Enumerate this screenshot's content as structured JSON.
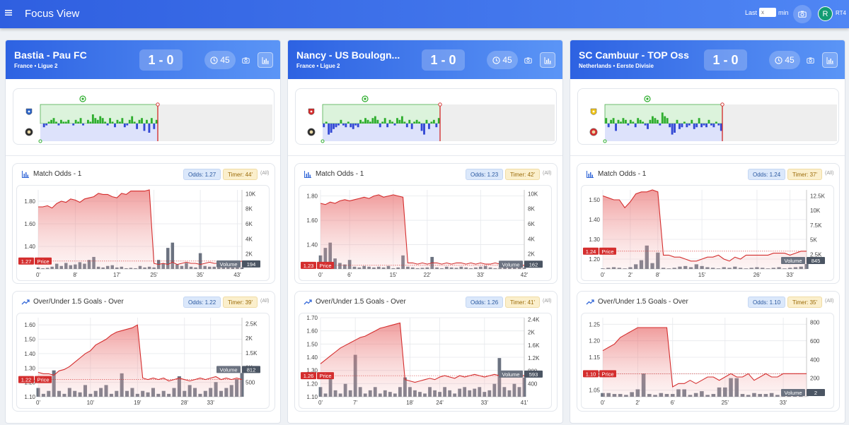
{
  "header": {
    "menu_icon": "hamburger-icon",
    "title": "Focus View",
    "last_label": "Last",
    "last_placeholder": "x",
    "min_label": "min",
    "snapshot_icon": "camera-icon",
    "avatar_initial": "R",
    "user_tag": "RT4"
  },
  "panels": [
    {
      "title": "Bastia - Pau FC",
      "league": "France • Ligue 2",
      "score": "1 - 0",
      "minute": "45",
      "colors": {
        "home_badge": "#2b63c6",
        "away_badge": "#2a2a2a"
      },
      "match_odds": {
        "title": "Match Odds - 1",
        "odds_badge": "Odds: 1.27",
        "timer_badge": "Timer: 44'",
        "all_label": "(All)",
        "price_label": "1.27",
        "price_tag": "Price",
        "volume_tag": "Volume",
        "volume_value": "194"
      },
      "over_under": {
        "title": "Over/Under 1.5 Goals - Over",
        "odds_badge": "Odds: 1.22",
        "timer_badge": "Timer: 39'",
        "all_label": "(All)",
        "price_label": "1.22",
        "price_tag": "Price",
        "volume_tag": "Volume",
        "volume_value": "812"
      }
    },
    {
      "title": "Nancy - US Boulogn...",
      "league": "France • Ligue 2",
      "score": "1 - 0",
      "minute": "45",
      "colors": {
        "home_badge": "#d62b2b",
        "away_badge": "#2a2a2a"
      },
      "match_odds": {
        "title": "Match Odds - 1",
        "odds_badge": "Odds: 1.23",
        "timer_badge": "Timer: 42'",
        "all_label": "(All)",
        "price_label": "1.23",
        "price_tag": "Price",
        "volume_tag": "Volume",
        "volume_value": "162"
      },
      "over_under": {
        "title": "Over/Under 1.5 Goals - Over",
        "odds_badge": "Odds: 1.26",
        "timer_badge": "Timer: 41'",
        "all_label": "(All)",
        "price_label": "1.26",
        "price_tag": "Price",
        "volume_tag": "Volume",
        "volume_value": "593"
      }
    },
    {
      "title": "SC Cambuur - TOP Oss",
      "league": "Netherlands • Eerste Divisie",
      "score": "1 - 0",
      "minute": "45",
      "colors": {
        "home_badge": "#f0c419",
        "away_badge": "#d62b2b"
      },
      "match_odds": {
        "title": "Match Odds - 1",
        "odds_badge": "Odds: 1.24",
        "timer_badge": "Timer: 37'",
        "all_label": "(All)",
        "price_label": "1.24",
        "price_tag": "Price",
        "volume_tag": "Volume",
        "volume_value": "845"
      },
      "over_under": {
        "title": "Over/Under 1.5 Goals - Over",
        "odds_badge": "Odds: 1.10",
        "timer_badge": "Timer: 35'",
        "all_label": "(All)",
        "price_label": "1.10",
        "price_tag": "Price",
        "volume_tag": "Volume",
        "volume_value": "2"
      }
    }
  ],
  "chart_data": [
    {
      "type": "line",
      "id": "p0-match-odds",
      "x": [
        0,
        1,
        2,
        3,
        4,
        5,
        6,
        7,
        8,
        9,
        10,
        11,
        12,
        13,
        14,
        15,
        16,
        17,
        18,
        19,
        20,
        21,
        22,
        23,
        24,
        25,
        26,
        27,
        28,
        29,
        30,
        31,
        32,
        33,
        34,
        35,
        36,
        37,
        38,
        39,
        40,
        41,
        42,
        43,
        44
      ],
      "xticks": [
        "0'",
        "8'",
        "17'",
        "25'",
        "35'",
        "43'"
      ],
      "xtick_pos": [
        0,
        8,
        17,
        25,
        35,
        43
      ],
      "price": [
        1.75,
        1.75,
        1.76,
        1.74,
        1.78,
        1.8,
        1.79,
        1.82,
        1.81,
        1.79,
        1.82,
        1.83,
        1.84,
        1.87,
        1.86,
        1.86,
        1.84,
        1.83,
        1.87,
        1.86,
        1.89,
        1.89,
        1.89,
        1.89,
        1.9,
        1.25,
        1.24,
        1.25,
        1.24,
        1.26,
        1.24,
        1.25,
        1.26,
        1.25,
        1.25,
        1.24,
        1.25,
        1.26,
        1.25,
        1.25,
        1.24,
        1.25,
        1.25,
        1.26,
        1.27
      ],
      "volume": [
        200,
        100,
        150,
        300,
        700,
        400,
        800,
        500,
        600,
        900,
        700,
        1200,
        1600,
        300,
        200,
        400,
        500,
        200,
        300,
        100,
        150,
        100,
        400,
        200,
        300,
        200,
        1200,
        700,
        2800,
        3500,
        600,
        400,
        800,
        300,
        200,
        2100,
        400,
        300,
        300,
        200,
        500,
        300,
        200,
        400,
        194
      ],
      "ylim": [
        1.2,
        1.9
      ],
      "yticks": [
        1.4,
        1.6,
        1.8
      ],
      "y2lim": [
        0,
        10500
      ],
      "y2ticks": [
        2000,
        4000,
        6000,
        8000,
        10000
      ],
      "y2labels": [
        "2K",
        "4K",
        "6K",
        "8K",
        "10K"
      ],
      "ref_line": 1.27
    },
    {
      "type": "line",
      "id": "p0-over-under",
      "x": [
        0,
        1,
        2,
        3,
        4,
        5,
        6,
        7,
        8,
        9,
        10,
        11,
        12,
        13,
        14,
        15,
        16,
        17,
        18,
        19,
        20,
        21,
        22,
        23,
        24,
        25,
        26,
        27,
        28,
        29,
        30,
        31,
        32,
        33,
        34,
        35,
        36,
        37,
        38,
        39
      ],
      "xticks": [
        "0'",
        "10'",
        "19'",
        "28'",
        "33'"
      ],
      "xtick_pos": [
        0,
        10,
        19,
        28,
        33
      ],
      "price": [
        1.27,
        1.26,
        1.26,
        1.25,
        1.28,
        1.29,
        1.31,
        1.34,
        1.37,
        1.4,
        1.42,
        1.46,
        1.48,
        1.5,
        1.53,
        1.55,
        1.56,
        1.57,
        1.58,
        1.6,
        1.23,
        1.22,
        1.23,
        1.22,
        1.23,
        1.21,
        1.22,
        1.23,
        1.22,
        1.21,
        1.22,
        1.23,
        1.22,
        1.23,
        1.24,
        1.22,
        1.23,
        1.22,
        1.23,
        1.22
      ],
      "volume": [
        300,
        100,
        200,
        900,
        200,
        100,
        300,
        200,
        150,
        400,
        100,
        200,
        300,
        400,
        100,
        200,
        800,
        200,
        300,
        100,
        200,
        150,
        300,
        100,
        200,
        100,
        300,
        700,
        200,
        400,
        300,
        100,
        200,
        300,
        500,
        200,
        300,
        400,
        600,
        812
      ],
      "ylim": [
        1.1,
        1.65
      ],
      "yticks": [
        1.1,
        1.2,
        1.3,
        1.4,
        1.5,
        1.6
      ],
      "y2lim": [
        0,
        2700
      ],
      "y2ticks": [
        500,
        1000,
        1500,
        2000,
        2500
      ],
      "y2labels": [
        "500",
        "1K",
        "1.5K",
        "2K",
        "2.5K"
      ],
      "ref_line": 1.22
    },
    {
      "type": "line",
      "id": "p1-match-odds",
      "x": [
        0,
        1,
        2,
        3,
        4,
        5,
        6,
        7,
        8,
        9,
        10,
        11,
        12,
        13,
        14,
        15,
        16,
        17,
        18,
        19,
        20,
        21,
        22,
        23,
        24,
        25,
        26,
        27,
        28,
        29,
        30,
        31,
        32,
        33,
        34,
        35,
        36,
        37,
        38,
        39,
        40,
        41,
        42
      ],
      "xticks": [
        "0'",
        "6'",
        "15'",
        "22'",
        "33'",
        "42'"
      ],
      "xtick_pos": [
        0,
        6,
        15,
        22,
        33,
        42
      ],
      "price": [
        1.74,
        1.73,
        1.75,
        1.74,
        1.76,
        1.77,
        1.76,
        1.77,
        1.78,
        1.79,
        1.78,
        1.8,
        1.81,
        1.79,
        1.8,
        1.81,
        1.8,
        1.79,
        1.25,
        1.25,
        1.24,
        1.25,
        1.24,
        1.25,
        1.25,
        1.24,
        1.25,
        1.24,
        1.25,
        1.25,
        1.24,
        1.25,
        1.24,
        1.25,
        1.24,
        1.24,
        1.25,
        1.24,
        1.24,
        1.23,
        1.24,
        1.23,
        1.23
      ],
      "volume": [
        1800,
        2800,
        3500,
        1400,
        800,
        600,
        1200,
        300,
        200,
        400,
        300,
        200,
        300,
        200,
        400,
        100,
        200,
        1800,
        300,
        200,
        100,
        150,
        200,
        1600,
        200,
        100,
        300,
        200,
        150,
        300,
        200,
        100,
        200,
        300,
        400,
        200,
        100,
        150,
        200,
        300,
        250,
        200,
        162
      ],
      "ylim": [
        1.2,
        1.85
      ],
      "yticks": [
        1.4,
        1.6,
        1.8
      ],
      "y2lim": [
        0,
        10500
      ],
      "y2ticks": [
        2000,
        4000,
        6000,
        8000,
        10000
      ],
      "y2labels": [
        "2K",
        "4K",
        "6K",
        "8K",
        "10K"
      ],
      "ref_line": 1.23
    },
    {
      "type": "line",
      "id": "p1-over-under",
      "x": [
        0,
        1,
        2,
        3,
        4,
        5,
        6,
        7,
        8,
        9,
        10,
        11,
        12,
        13,
        14,
        15,
        16,
        17,
        18,
        19,
        20,
        21,
        22,
        23,
        24,
        25,
        26,
        27,
        28,
        29,
        30,
        31,
        32,
        33,
        34,
        35,
        36,
        37,
        38,
        39,
        40,
        41
      ],
      "xticks": [
        "0'",
        "7'",
        "18'",
        "24'",
        "33'",
        "41'"
      ],
      "xtick_pos": [
        0,
        7,
        18,
        24,
        33,
        41
      ],
      "price": [
        1.35,
        1.38,
        1.41,
        1.44,
        1.47,
        1.49,
        1.51,
        1.53,
        1.55,
        1.56,
        1.58,
        1.6,
        1.62,
        1.63,
        1.64,
        1.65,
        1.66,
        1.23,
        1.22,
        1.21,
        1.22,
        1.23,
        1.24,
        1.23,
        1.25,
        1.26,
        1.25,
        1.24,
        1.26,
        1.25,
        1.26,
        1.27,
        1.26,
        1.25,
        1.26,
        1.27,
        1.26,
        1.25,
        1.26,
        1.27,
        1.26,
        1.26
      ],
      "volume": [
        300,
        100,
        600,
        200,
        100,
        400,
        200,
        1300,
        300,
        100,
        200,
        300,
        100,
        200,
        150,
        100,
        300,
        600,
        300,
        200,
        150,
        100,
        300,
        200,
        150,
        300,
        200,
        100,
        250,
        300,
        200,
        250,
        300,
        150,
        200,
        400,
        1200,
        300,
        200,
        400,
        300,
        593
      ],
      "ylim": [
        1.1,
        1.7
      ],
      "yticks": [
        1.1,
        1.2,
        1.3,
        1.4,
        1.5,
        1.6,
        1.7
      ],
      "y2lim": [
        0,
        2450
      ],
      "y2ticks": [
        400,
        800,
        1200,
        1600,
        2000,
        2400
      ],
      "y2labels": [
        "400",
        "800",
        "1.2K",
        "1.6K",
        "2K",
        "2.4K"
      ],
      "ref_line": 1.26
    },
    {
      "type": "line",
      "id": "p2-match-odds",
      "x": [
        0,
        1,
        2,
        3,
        4,
        5,
        6,
        7,
        8,
        9,
        10,
        11,
        12,
        13,
        14,
        15,
        16,
        17,
        18,
        19,
        20,
        21,
        22,
        23,
        24,
        25,
        26,
        27,
        28,
        29,
        30,
        31,
        32,
        33,
        34,
        35,
        36,
        37
      ],
      "xticks": [
        "0'",
        "2'",
        "8'",
        "15'",
        "26'",
        "33'"
      ],
      "xtick_pos": [
        0,
        5,
        10,
        18,
        28,
        34
      ],
      "price": [
        1.52,
        1.51,
        1.5,
        1.5,
        1.46,
        1.49,
        1.53,
        1.54,
        1.54,
        1.55,
        1.54,
        1.22,
        1.22,
        1.21,
        1.21,
        1.2,
        1.19,
        1.19,
        1.2,
        1.21,
        1.21,
        1.22,
        1.2,
        1.19,
        1.21,
        1.2,
        1.22,
        1.22,
        1.22,
        1.22,
        1.22,
        1.23,
        1.23,
        1.23,
        1.22,
        1.23,
        1.24,
        1.24
      ],
      "volume": [
        100,
        200,
        300,
        200,
        100,
        300,
        800,
        1500,
        4000,
        1000,
        2800,
        200,
        100,
        200,
        400,
        500,
        300,
        800,
        500,
        300,
        200,
        100,
        300,
        200,
        400,
        200,
        100,
        200,
        300,
        200,
        100,
        200,
        300,
        100,
        200,
        300,
        400,
        845
      ],
      "ylim": [
        1.15,
        1.55
      ],
      "yticks": [
        1.2,
        1.3,
        1.4,
        1.5
      ],
      "y2lim": [
        0,
        13500
      ],
      "y2ticks": [
        2500,
        5000,
        7500,
        10000,
        12500
      ],
      "y2labels": [
        "2.5K",
        "5K",
        "7.5K",
        "10K",
        "12.5K"
      ],
      "ref_line": 1.24
    },
    {
      "type": "line",
      "id": "p2-over-under",
      "x": [
        0,
        1,
        2,
        3,
        4,
        5,
        6,
        7,
        8,
        9,
        10,
        11,
        12,
        13,
        14,
        15,
        16,
        17,
        18,
        19,
        20,
        21,
        22,
        23,
        24,
        25,
        26,
        27,
        28,
        29,
        30,
        31,
        32,
        33,
        34,
        35
      ],
      "xticks": [
        "0'",
        "2'",
        "6'",
        "25'",
        "33'"
      ],
      "xtick_pos": [
        0,
        6,
        12,
        21,
        31
      ],
      "price": [
        1.17,
        1.18,
        1.19,
        1.21,
        1.22,
        1.23,
        1.24,
        1.24,
        1.24,
        1.24,
        1.24,
        1.24,
        1.06,
        1.07,
        1.07,
        1.08,
        1.07,
        1.08,
        1.09,
        1.09,
        1.08,
        1.09,
        1.1,
        1.09,
        1.09,
        1.1,
        1.08,
        1.09,
        1.1,
        1.09,
        1.09,
        1.1,
        1.1,
        1.1,
        1.1,
        1.1
      ],
      "volume": [
        40,
        40,
        30,
        30,
        20,
        50,
        80,
        250,
        30,
        20,
        40,
        30,
        30,
        80,
        80,
        20,
        40,
        60,
        20,
        30,
        100,
        100,
        200,
        200,
        30,
        20,
        40,
        30,
        30,
        40,
        20,
        30,
        20,
        20,
        10,
        2
      ],
      "ylim": [
        1.03,
        1.27
      ],
      "yticks": [
        1.05,
        1.1,
        1.15,
        1.2,
        1.25
      ],
      "y2lim": [
        0,
        850
      ],
      "y2ticks": [
        200,
        400,
        600,
        800
      ],
      "y2labels": [
        "200",
        "400",
        "600",
        "800"
      ],
      "ref_line": 1.1
    }
  ],
  "momentum_data": [
    {
      "bars": [
        0,
        -2,
        -1,
        1,
        2,
        3,
        1,
        -1,
        2,
        1,
        1,
        2,
        0,
        -1,
        2,
        1,
        3,
        -1,
        0,
        2,
        1,
        5,
        3,
        2,
        4,
        3,
        1,
        -1,
        3,
        1,
        -2,
        2,
        1,
        3,
        -2,
        -1,
        2,
        4,
        1,
        -3,
        2,
        3,
        -4,
        2,
        -5,
        3,
        -3,
        2
      ]
    },
    {
      "bars": [
        -2,
        1,
        -6,
        -5,
        -3,
        -2,
        -1,
        2,
        -1,
        -2,
        1,
        -2,
        -3,
        -1,
        -2,
        2,
        1,
        3,
        2,
        1,
        3,
        4,
        2,
        -2,
        1,
        3,
        -2,
        2,
        1,
        -1,
        3,
        2,
        4,
        1,
        -2,
        2,
        -3,
        1,
        2,
        1,
        -4,
        -6,
        2,
        -3,
        1,
        2,
        -2,
        3
      ]
    },
    {
      "bars": [
        3,
        -2,
        2,
        3,
        -4,
        2,
        1,
        3,
        2,
        -1,
        2,
        1,
        -2,
        3,
        2,
        1,
        -1,
        -3,
        2,
        4,
        3,
        2,
        -1,
        6,
        4,
        3,
        -2,
        -6,
        -5,
        2,
        -3,
        -2,
        1,
        -2,
        -1,
        2,
        -3,
        -2,
        3,
        -2,
        -1,
        -2,
        2,
        -1,
        -2,
        1,
        -1,
        -4
      ]
    }
  ]
}
